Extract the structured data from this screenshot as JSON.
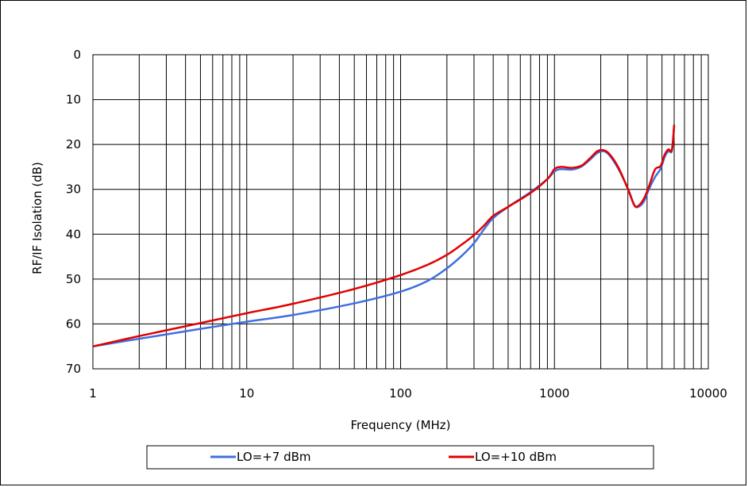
{
  "chart_data": {
    "type": "line",
    "title": "",
    "xlabel": "Frequency (MHz)",
    "ylabel": "RF/IF Isolation (dB)",
    "xscale": "log",
    "xlim": [
      1,
      10000
    ],
    "ylim": [
      0,
      70
    ],
    "y_inverted": true,
    "x_ticks": [
      "1",
      "10",
      "100",
      "1000",
      "10000"
    ],
    "y_ticks": [
      "0",
      "10",
      "20",
      "30",
      "40",
      "50",
      "60",
      "70"
    ],
    "grid": true,
    "legend_position": "bottom",
    "series": [
      {
        "name": "LO=+7 dBm",
        "color": "#3f6fe0",
        "points": [
          [
            1,
            65.0
          ],
          [
            2,
            63.3
          ],
          [
            5,
            61.1
          ],
          [
            10,
            59.5
          ],
          [
            20,
            58.0
          ],
          [
            50,
            55.4
          ],
          [
            100,
            52.8
          ],
          [
            150,
            50.4
          ],
          [
            200,
            47.6
          ],
          [
            250,
            44.8
          ],
          [
            300,
            42.0
          ],
          [
            350,
            38.8
          ],
          [
            400,
            36.4
          ],
          [
            500,
            33.9
          ],
          [
            700,
            30.6
          ],
          [
            900,
            27.7
          ],
          [
            1000,
            26.0
          ],
          [
            1100,
            25.5
          ],
          [
            1300,
            25.6
          ],
          [
            1500,
            24.9
          ],
          [
            1700,
            23.4
          ],
          [
            1900,
            21.9
          ],
          [
            2100,
            21.5
          ],
          [
            2300,
            22.6
          ],
          [
            2600,
            25.4
          ],
          [
            3000,
            29.8
          ],
          [
            3300,
            33.5
          ],
          [
            3500,
            33.9
          ],
          [
            3800,
            32.8
          ],
          [
            4100,
            30.1
          ],
          [
            4500,
            27.3
          ],
          [
            4900,
            25.4
          ],
          [
            5200,
            22.8
          ],
          [
            5500,
            21.5
          ],
          [
            5800,
            21.4
          ],
          [
            6000,
            16.0
          ]
        ]
      },
      {
        "name": "LO=+10 dBm",
        "color": "#e00000",
        "points": [
          [
            1,
            65.0
          ],
          [
            2,
            62.7
          ],
          [
            5,
            59.8
          ],
          [
            10,
            57.6
          ],
          [
            20,
            55.5
          ],
          [
            50,
            52.2
          ],
          [
            100,
            49.1
          ],
          [
            150,
            46.8
          ],
          [
            200,
            44.6
          ],
          [
            250,
            42.3
          ],
          [
            300,
            40.2
          ],
          [
            350,
            38.0
          ],
          [
            400,
            35.9
          ],
          [
            500,
            33.9
          ],
          [
            700,
            30.8
          ],
          [
            900,
            27.7
          ],
          [
            1000,
            25.5
          ],
          [
            1100,
            25.0
          ],
          [
            1300,
            25.2
          ],
          [
            1500,
            24.7
          ],
          [
            1700,
            23.1
          ],
          [
            1900,
            21.5
          ],
          [
            2100,
            21.3
          ],
          [
            2300,
            22.3
          ],
          [
            2600,
            25.1
          ],
          [
            3000,
            29.9
          ],
          [
            3300,
            33.5
          ],
          [
            3500,
            33.7
          ],
          [
            3800,
            32.2
          ],
          [
            4100,
            29.5
          ],
          [
            4500,
            25.6
          ],
          [
            4900,
            24.8
          ],
          [
            5200,
            22.3
          ],
          [
            5500,
            21.1
          ],
          [
            5800,
            21.2
          ],
          [
            6000,
            15.6
          ]
        ]
      }
    ]
  }
}
